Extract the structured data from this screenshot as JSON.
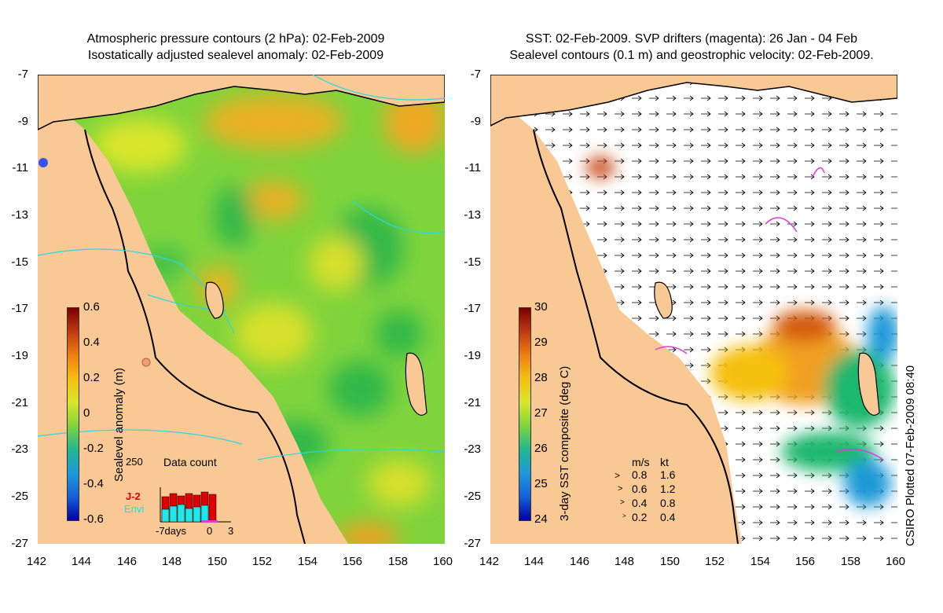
{
  "left_panel": {
    "title_line1": "Atmospheric pressure contours (2 hPa): 02-Feb-2009",
    "title_line2": "Isostatically adjusted sealevel anomaly: 02-Feb-2009",
    "colorbar": {
      "label": "Sealevel anomaly (m)",
      "ticks": [
        "0.6",
        "0.4",
        "0.2",
        "0",
        "-0.2",
        "-0.4",
        "-0.6"
      ],
      "range": [
        -0.6,
        0.6
      ]
    },
    "inset": {
      "label": "Data count",
      "max_label": "250",
      "sat1": "J-2",
      "sat2": "Envi",
      "xlabels": [
        "-7days",
        "0",
        "3"
      ]
    }
  },
  "right_panel": {
    "title_line1": "SST: 02-Feb-2009. SVP drifters (magenta): 26 Jan - 04 Feb",
    "title_line2": "Sealevel contours (0.1 m) and geostrophic velocity: 02-Feb-2009.",
    "colorbar": {
      "label": "3-day SST composite (deg C)",
      "ticks": [
        "30",
        "29",
        "28",
        "27",
        "26",
        "25",
        "24"
      ],
      "range": [
        24,
        30
      ]
    },
    "velocity_key": {
      "header_ms": "m/s",
      "header_kt": "kt",
      "rows": [
        {
          "ms": "0.8",
          "kt": "1.6"
        },
        {
          "ms": "0.6",
          "kt": "1.2"
        },
        {
          "ms": "0.4",
          "kt": "0.8"
        },
        {
          "ms": "0.2",
          "kt": "0.4"
        }
      ]
    }
  },
  "axes": {
    "lat_ticks": [
      "-7",
      "-9",
      "-11",
      "-13",
      "-15",
      "-17",
      "-19",
      "-21",
      "-23",
      "-25",
      "-27"
    ],
    "lon_ticks": [
      "142",
      "144",
      "146",
      "148",
      "150",
      "152",
      "154",
      "156",
      "158",
      "160"
    ]
  },
  "footer": "CSIRO Plotted 07-Feb-2009 08:40",
  "colors": {
    "land": "#f9c995",
    "ocean_left": "#7fd43c",
    "ocean_right": "#ffffff",
    "contour": "#27d9e6",
    "drifter": "#e23ad8"
  }
}
